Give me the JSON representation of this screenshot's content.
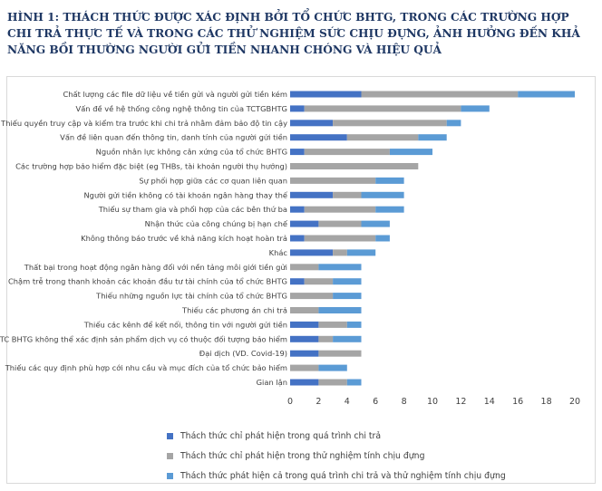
{
  "title": "HÌNH 1: THÁCH THỨC ĐƯỢC XÁC ĐỊNH BỞI TỔ CHỨC BHTG, TRONG CÁC TRƯỜNG HỢP CHI TRẢ THỰC TẾ VÀ TRONG CÁC THỬ NGHIỆM SỨC CHỊU ĐỰNG, ẢNH HƯỞNG ĐẾN KHẢ NĂNG BỒI THƯỜNG NGƯỜI GỬI TIỀN NHANH CHÓNG VÀ HIỆU QUẢ",
  "chart_data": {
    "type": "bar",
    "orientation": "horizontal",
    "stacked": true,
    "title": "HÌNH 1: THÁCH THỨC ĐƯỢC XÁC ĐỊNH BỞI TỔ CHỨC BHTG, TRONG CÁC TRƯỜNG HỢP CHI TRẢ THỰC TẾ VÀ TRONG CÁC THỬ NGHIỆM SỨC CHỊU ĐỰNG, ẢNH HƯỞNG ĐẾN KHẢ NĂNG BỒI THƯỜNG NGƯỜI GỬI TIỀN NHANH CHÓNG VÀ HIỆU QUẢ",
    "xlabel": "",
    "ylabel": "",
    "xlim": [
      0,
      20
    ],
    "xticks": [
      0,
      2,
      4,
      6,
      8,
      10,
      12,
      14,
      16,
      18,
      20
    ],
    "grid": false,
    "legend_position": "bottom",
    "categories": [
      "Chất lượng các file dữ liệu về tiền gửi và người gửi tiền kém",
      "Vấn đề về hệ thống công nghệ thông tin của TCTGBHTG",
      "Thiếu quyền truy cập và kiểm tra trước khi chi trả nhằm đảm bảo độ tin cậy",
      "Vấn đề liên quan đến thông tin, danh tính của người gửi tiền",
      "Nguồn nhân lực không cân xứng của tổ chức BHTG",
      "Các trường hợp bảo hiểm đặc biệt (eg THBs, tài khoản người thụ hưởng)",
      "Sự phối hợp giữa các cơ quan liên quan",
      "Người gửi tiền không có tài khoản ngân hàng thay thế",
      "Thiếu sự tham gia và phối hợp của các bên thứ ba",
      "Nhận thức của công chúng bị hạn chế",
      "Không thông báo trước về khả năng kích hoạt hoàn trả",
      "Khác",
      "Thất bại trong hoạt động ngân hàng đối với nền tảng môi giới tiền gửi",
      "Chậm trễ trong thanh khoản các khoản đầu tư tài chính của tổ chức BHTG",
      "Thiếu những nguồn lực tài chính của tổ chức BHTG",
      "Thiếu các phương án chi trả",
      "Thiếu các kênh để kết nối, thông tin với người gửi tiền",
      "TC BHTG không thể xác định sản phẩm dịch vụ có thuộc đối tượng bảo hiểm",
      "Đại dịch (VD. Covid-19)",
      "Thiếu các quy định phù hợp cới nhu cầu và mục đích của tổ chức bảo hiểm",
      "Gian lận"
    ],
    "series": [
      {
        "name": "Thách thức chỉ phát hiện trong quá trình chi trả",
        "color": "#4472c4",
        "values": [
          5,
          1,
          3,
          4,
          1,
          0,
          0,
          3,
          1,
          2,
          1,
          3,
          0,
          1,
          0,
          0,
          2,
          2,
          2,
          0,
          2
        ]
      },
      {
        "name": "Thách thức chỉ phát hiện trong thử nghiệm tính chịu đựng",
        "color": "#a5a5a5",
        "values": [
          11,
          11,
          8,
          5,
          6,
          9,
          6,
          2,
          5,
          3,
          5,
          1,
          2,
          2,
          3,
          2,
          2,
          1,
          3,
          2,
          2
        ]
      },
      {
        "name": "Thách thức phát hiện cả trong quá trình chi trả và thử nghiệm tính chịu đựng",
        "color": "#5b9bd5",
        "values": [
          4,
          2,
          1,
          2,
          3,
          0,
          2,
          3,
          2,
          2,
          1,
          2,
          3,
          2,
          2,
          3,
          1,
          2,
          0,
          2,
          1
        ]
      }
    ]
  }
}
